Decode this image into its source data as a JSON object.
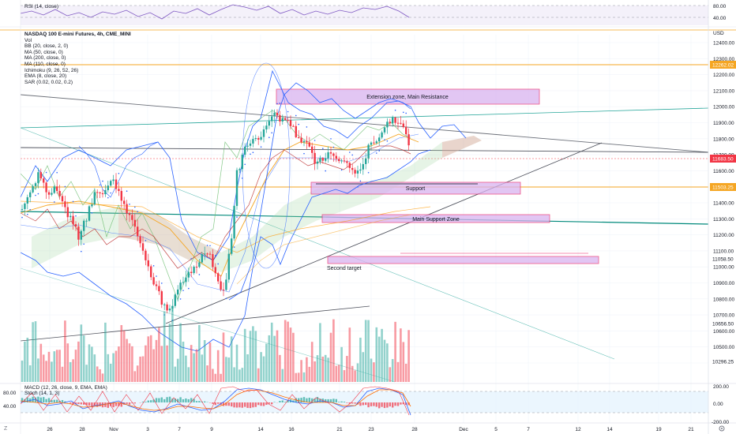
{
  "symbol": {
    "title": "NASDAQ 100 E-mini Futures, 4h, CME_MINI",
    "indicators": [
      "Vol",
      "BB (20, close, 2, 0)",
      "MA (50, close, 0)",
      "MA (200, close, 0)",
      "MA (110, close, 0)",
      "Ichimoku (9, 26, 52, 26)",
      "EMA (8, close, 20)",
      "SAR (0.02, 0.02, 0.2)"
    ]
  },
  "rsi": {
    "label": "RSI (14, close)",
    "levels": [
      "80.00",
      "40.00"
    ]
  },
  "macd": {
    "label": "MACD (12, 26, close, 9, EMA, EMA)",
    "stoch_label": "Stoch (14, 1, 3)",
    "levels_left": [
      "80.00",
      "40.00"
    ],
    "levels_right": [
      "200.00",
      "0.00",
      "-200.00"
    ]
  },
  "currency": "USD",
  "price_axis": [
    "12400.00",
    "12300.00",
    "12200.00",
    "12100.00",
    "12000.00",
    "11900.00",
    "11800.00",
    "11700.00",
    "11600.00",
    "11500.00",
    "11400.00",
    "11300.00",
    "11200.00",
    "11100.00",
    "11000.00",
    "10900.00",
    "10800.00",
    "10700.00",
    "10600.00",
    "10500.00",
    "10400.00"
  ],
  "price_badges": [
    {
      "text": "12262.02",
      "color": "#f5a623"
    },
    {
      "text": "11683.50",
      "color": "#f23645"
    },
    {
      "text": "11503.25",
      "color": "#f5a623"
    },
    {
      "text": "11058.50",
      "color": "#ffffff"
    },
    {
      "text": "10656.50",
      "color": "#ffffff"
    },
    {
      "text": "10296.25",
      "color": "#ffffff"
    }
  ],
  "time_axis": [
    "26",
    "28",
    "Nov",
    "3",
    "7",
    "9",
    "14",
    "16",
    "21",
    "23",
    "28",
    "Dec",
    "5",
    "7",
    "12",
    "14",
    "19",
    "21"
  ],
  "annotations": {
    "extension": "Extension zone, Main Resistance",
    "support": "Support",
    "main_support": "Main Support Zone",
    "second_target": "Second target"
  },
  "icons": {
    "settings": "gear-icon"
  },
  "colors": {
    "up": "#26a69a",
    "down": "#f23645",
    "zone": "#d9b3f0",
    "zone_border": "#e91e63",
    "bb": "#2962ff",
    "ema": "#f5a623"
  }
}
